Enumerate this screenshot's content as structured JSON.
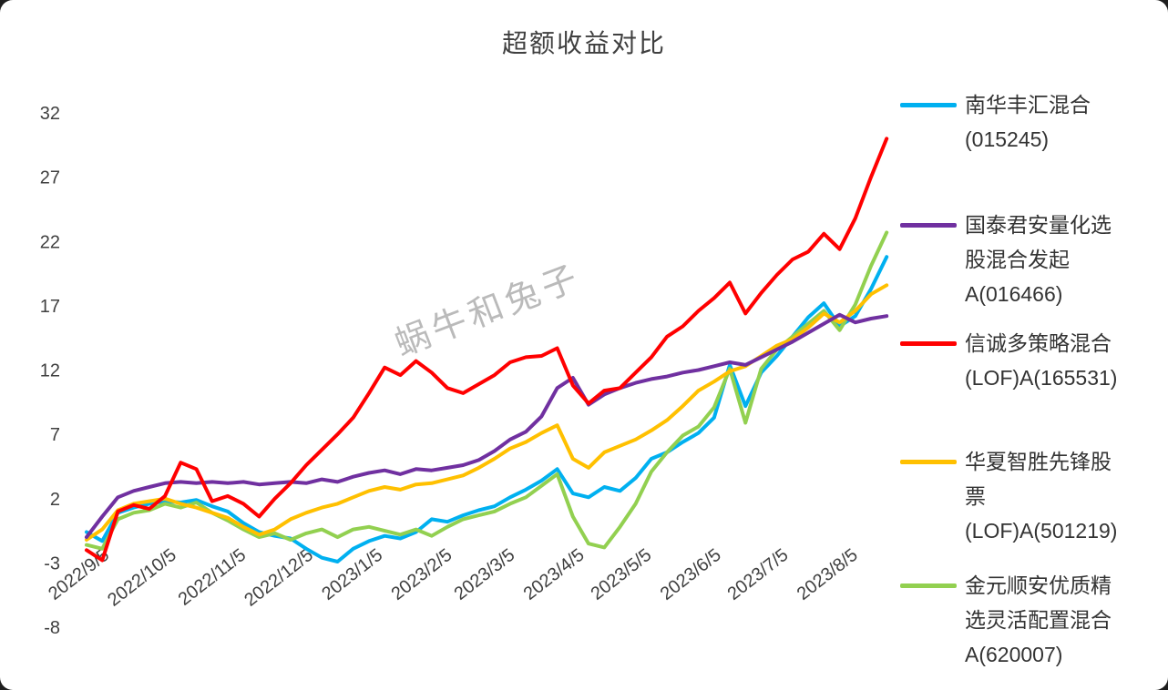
{
  "title": "超额收益对比",
  "watermark": "蜗牛和兔子",
  "chart_data": {
    "type": "line",
    "title": "超额收益对比",
    "x_unit": "days since 2022/9/5",
    "ylim": [
      -8,
      32
    ],
    "grid": false,
    "legend_position": "right",
    "yticks": [
      32,
      27,
      22,
      17,
      12,
      7,
      2,
      -3,
      -8
    ],
    "xticks": [
      {
        "label": "2022/9/5",
        "day": 0
      },
      {
        "label": "2022/10/5",
        "day": 30
      },
      {
        "label": "2022/11/5",
        "day": 61
      },
      {
        "label": "2022/12/5",
        "day": 91
      },
      {
        "label": "2023/1/5",
        "day": 122
      },
      {
        "label": "2023/2/5",
        "day": 153
      },
      {
        "label": "2023/3/5",
        "day": 181
      },
      {
        "label": "2023/4/5",
        "day": 212
      },
      {
        "label": "2023/5/5",
        "day": 242
      },
      {
        "label": "2023/6/5",
        "day": 273
      },
      {
        "label": "2023/7/5",
        "day": 303
      },
      {
        "label": "2023/8/5",
        "day": 334
      }
    ],
    "x": [
      0,
      7,
      14,
      21,
      28,
      35,
      42,
      49,
      56,
      63,
      70,
      77,
      84,
      91,
      98,
      105,
      112,
      119,
      126,
      133,
      140,
      147,
      154,
      161,
      168,
      175,
      182,
      189,
      196,
      203,
      210,
      217,
      224,
      231,
      238,
      245,
      252,
      259,
      266,
      273,
      280,
      287,
      294,
      301,
      308,
      315,
      322,
      329,
      336,
      343,
      350,
      357
    ],
    "series": [
      {
        "id": "nanhua-fenghui",
        "name": "南华丰汇混合(015245)",
        "color": "#00b0f0",
        "values": [
          -0.6,
          -1.3,
          0.9,
          1.3,
          1.6,
          1.8,
          1.7,
          1.9,
          1.4,
          1.0,
          0.1,
          -0.6,
          -0.9,
          -1.1,
          -1.9,
          -2.6,
          -2.9,
          -1.9,
          -1.3,
          -0.9,
          -1.1,
          -0.6,
          0.4,
          0.2,
          0.7,
          1.1,
          1.4,
          2.1,
          2.7,
          3.4,
          4.3,
          2.4,
          2.1,
          2.9,
          2.6,
          3.6,
          5.1,
          5.6,
          6.4,
          7.1,
          8.3,
          12.4,
          9.2,
          11.8,
          13.1,
          14.6,
          16.1,
          17.2,
          15.4,
          16.2,
          18.3,
          20.8
        ]
      },
      {
        "id": "jinyuan-shunan",
        "name": "金元顺安优质精选灵活配置混合A(620007)",
        "color": "#92d050",
        "values": [
          -1.6,
          -1.9,
          0.4,
          0.9,
          1.1,
          1.6,
          1.3,
          1.7,
          0.9,
          0.3,
          -0.4,
          -1.0,
          -0.7,
          -1.2,
          -0.7,
          -0.4,
          -1.0,
          -0.4,
          -0.2,
          -0.5,
          -0.8,
          -0.4,
          -0.9,
          -0.2,
          0.4,
          0.7,
          1.0,
          1.6,
          2.1,
          3.0,
          3.9,
          0.6,
          -1.5,
          -1.8,
          -0.2,
          1.6,
          4.1,
          5.6,
          6.9,
          7.6,
          9.1,
          12.1,
          7.9,
          12.1,
          13.6,
          14.6,
          15.6,
          16.6,
          15.1,
          17.1,
          20.1,
          22.7
        ]
      },
      {
        "id": "huaxia-zhisheng",
        "name": "华夏智胜先锋股票(LOF)A(501219)",
        "color": "#ffc000",
        "values": [
          -1.2,
          -0.4,
          1.1,
          1.6,
          1.8,
          2.0,
          1.6,
          1.3,
          0.9,
          0.5,
          -0.2,
          -0.8,
          -0.4,
          0.4,
          0.9,
          1.3,
          1.6,
          2.1,
          2.6,
          2.9,
          2.7,
          3.1,
          3.2,
          3.5,
          3.8,
          4.4,
          5.1,
          5.9,
          6.4,
          7.1,
          7.7,
          5.1,
          4.4,
          5.6,
          6.1,
          6.6,
          7.3,
          8.1,
          9.2,
          10.4,
          11.1,
          11.9,
          12.3,
          13.1,
          13.9,
          14.4,
          15.3,
          16.4,
          15.7,
          16.6,
          17.9,
          18.6
        ]
      },
      {
        "id": "guotai-junan",
        "name": "国泰君安量化选股混合发起A(016466)",
        "color": "#7030a0",
        "values": [
          -1.0,
          0.6,
          2.1,
          2.6,
          2.9,
          3.2,
          3.3,
          3.2,
          3.3,
          3.2,
          3.3,
          3.1,
          3.2,
          3.3,
          3.2,
          3.5,
          3.3,
          3.7,
          4.0,
          4.2,
          3.9,
          4.3,
          4.2,
          4.4,
          4.6,
          5.0,
          5.7,
          6.6,
          7.2,
          8.4,
          10.6,
          11.4,
          9.3,
          10.1,
          10.6,
          11.0,
          11.3,
          11.5,
          11.8,
          12.0,
          12.3,
          12.6,
          12.4,
          13.0,
          13.6,
          14.2,
          14.9,
          15.6,
          16.3,
          15.7,
          16.0,
          16.2
        ]
      },
      {
        "id": "xincheng-duocelue",
        "name": "信诚多策略混合(LOF)A(165531)",
        "color": "#ff0000",
        "values": [
          -2.0,
          -2.8,
          1.0,
          1.5,
          1.2,
          2.2,
          4.8,
          4.3,
          1.8,
          2.2,
          1.6,
          0.6,
          2.0,
          3.2,
          4.6,
          5.8,
          7.0,
          8.3,
          10.2,
          12.2,
          11.6,
          12.7,
          11.8,
          10.6,
          10.2,
          10.9,
          11.6,
          12.6,
          13.0,
          13.1,
          13.7,
          10.8,
          9.4,
          10.4,
          10.6,
          11.8,
          13.0,
          14.6,
          15.4,
          16.6,
          17.6,
          18.8,
          16.4,
          18.0,
          19.4,
          20.6,
          21.2,
          22.6,
          21.4,
          23.8,
          27.0,
          30.0
        ]
      }
    ]
  },
  "legend": {
    "items": [
      {
        "color": "#00b0f0",
        "lines": [
          "南华丰汇混合",
          "(015245)"
        ]
      },
      {
        "color": "#7030a0",
        "lines": [
          "国泰君安量化选",
          "股混合发起",
          "A(016466)"
        ]
      },
      {
        "color": "#ff0000",
        "lines": [
          "信诚多策略混合",
          "(LOF)A(165531)"
        ]
      },
      {
        "color": "#ffc000",
        "lines": [
          "华夏智胜先锋股",
          "票",
          "(LOF)A(501219)"
        ]
      },
      {
        "color": "#92d050",
        "lines": [
          "金元顺安优质精",
          "选灵活配置混合",
          "A(620007)"
        ]
      }
    ]
  }
}
